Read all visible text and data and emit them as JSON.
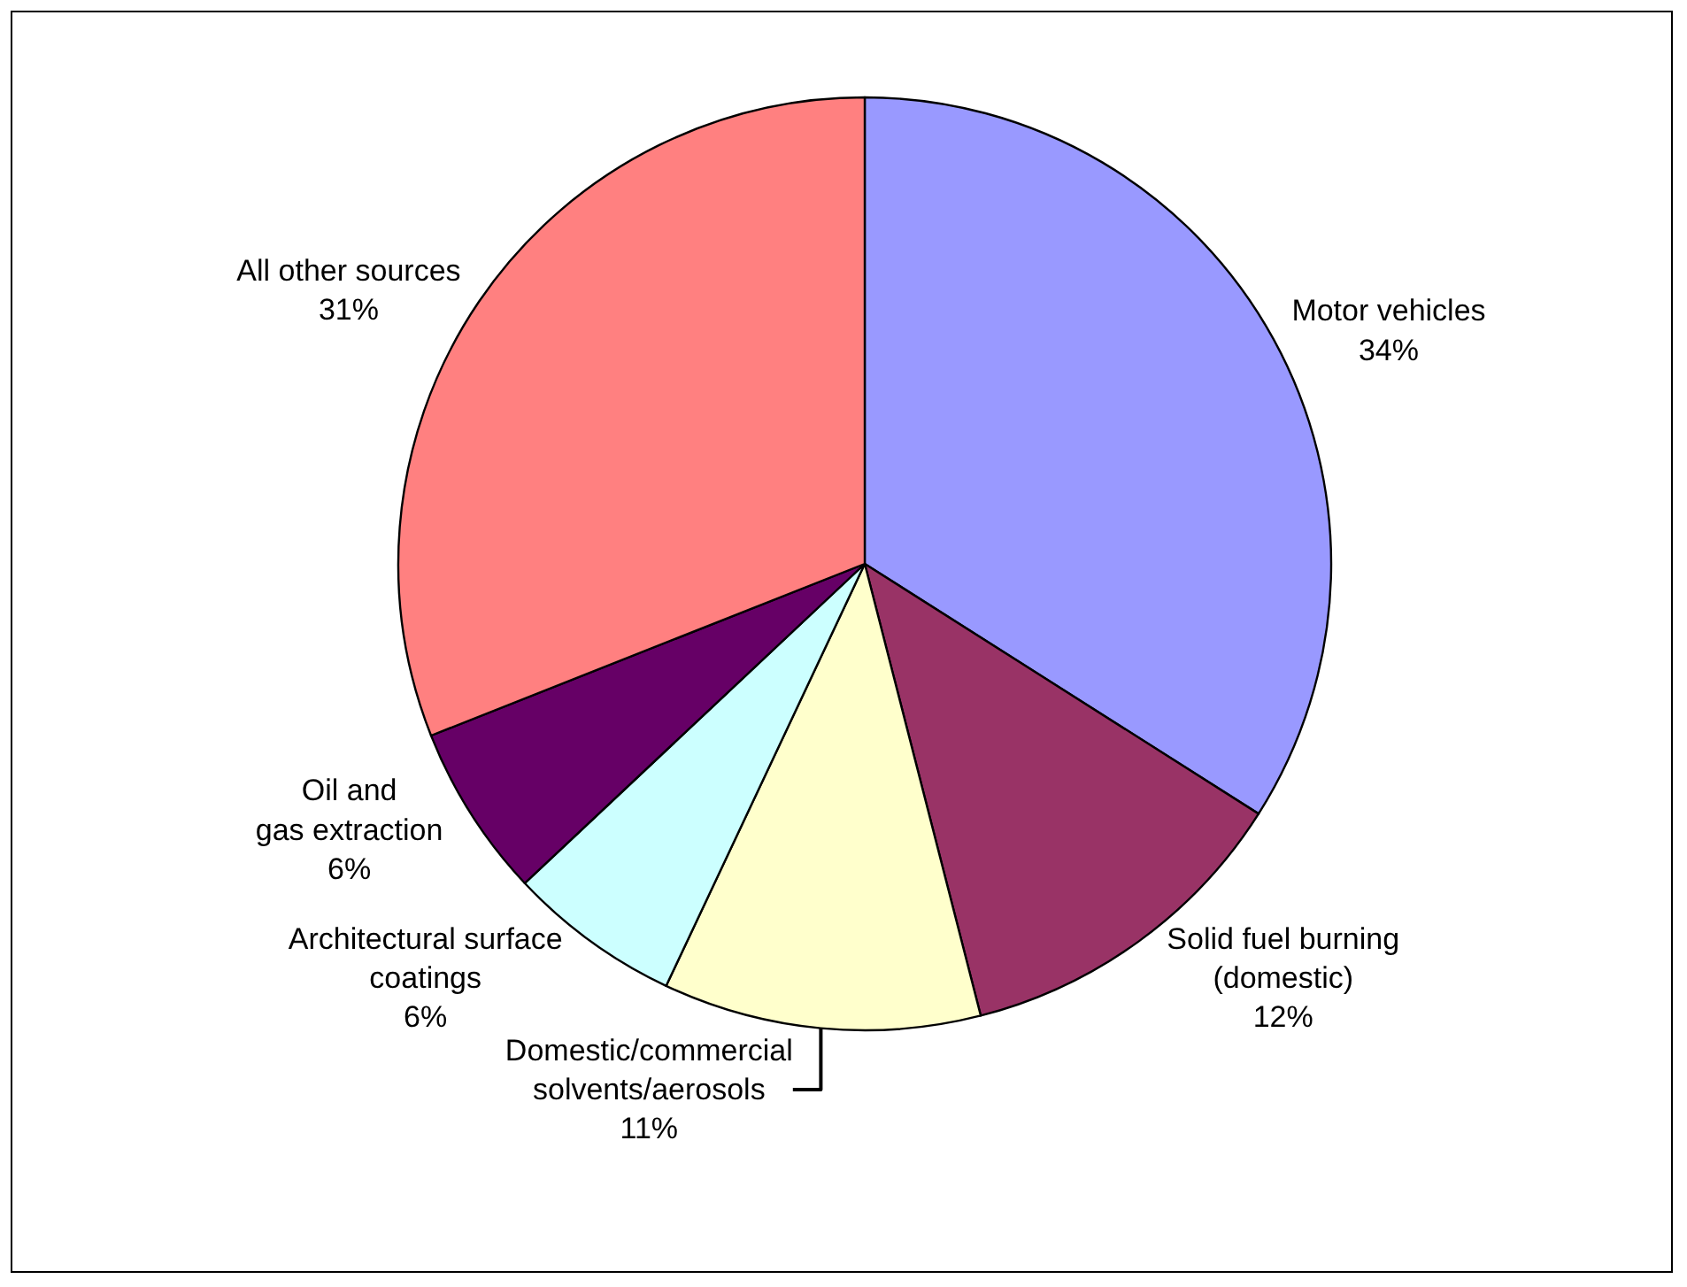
{
  "chart_data": {
    "type": "pie",
    "categories": [
      "Motor vehicles",
      "Solid fuel burning\n(domestic)",
      "Domestic/commercial\nsolvents/aerosols",
      "Architectural surface\ncoatings",
      "Oil and\ngas extraction",
      "All other sources"
    ],
    "values": [
      34,
      12,
      11,
      6,
      6,
      31
    ],
    "value_labels": [
      "34%",
      "12%",
      "11%",
      "6%",
      "6%",
      "31%"
    ],
    "colors": [
      "#9999ff",
      "#993366",
      "#ffffcc",
      "#ccffff",
      "#660066",
      "#ff8080"
    ],
    "legend": false
  }
}
